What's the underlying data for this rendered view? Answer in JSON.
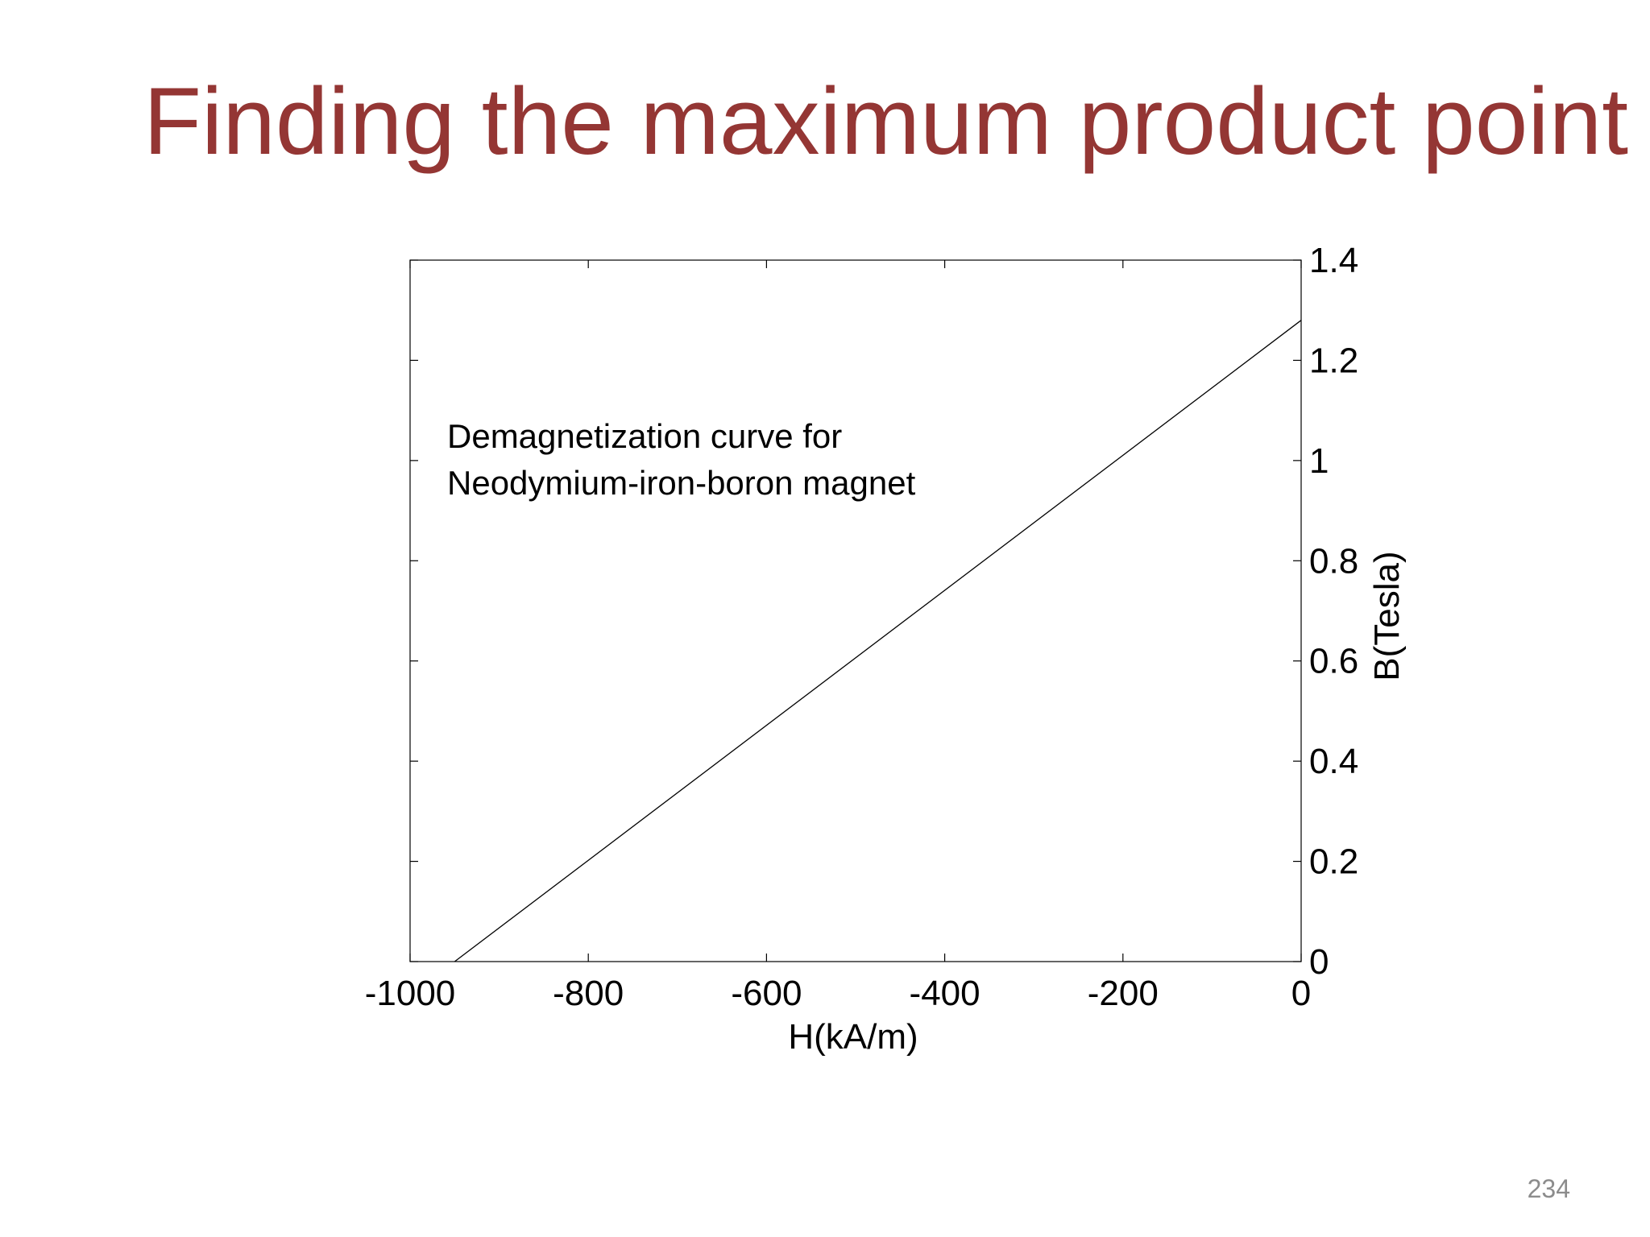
{
  "slide": {
    "title": "Finding the maximum product point",
    "page_number": "234"
  },
  "colors": {
    "title": "#943634",
    "line": "#000000",
    "page_number": "#8c8c8c"
  },
  "chart_data": {
    "type": "line",
    "title": "",
    "xlabel": "H(kA/m)",
    "ylabel": "B(Tesla)",
    "xlim": [
      -1000,
      0
    ],
    "ylim": [
      0,
      1.4
    ],
    "xticks": [
      -1000,
      -800,
      -600,
      -400,
      -200,
      0
    ],
    "xtick_labels": [
      "-1000",
      "-800",
      "-600",
      "-400",
      "-200",
      "0"
    ],
    "yticks": [
      0,
      0.2,
      0.4,
      0.6,
      0.8,
      1.0,
      1.2,
      1.4
    ],
    "ytick_labels": [
      "0",
      "0.2",
      "0.4",
      "0.6",
      "0.8",
      "1",
      "1.2",
      "1.4"
    ],
    "y_axis_side": "right",
    "grid": false,
    "annotation": [
      "Demagnetization curve for",
      "Neodymium-iron-boron magnet"
    ],
    "series": [
      {
        "x": [
          -950,
          0
        ],
        "y": [
          0,
          1.28
        ]
      }
    ]
  }
}
